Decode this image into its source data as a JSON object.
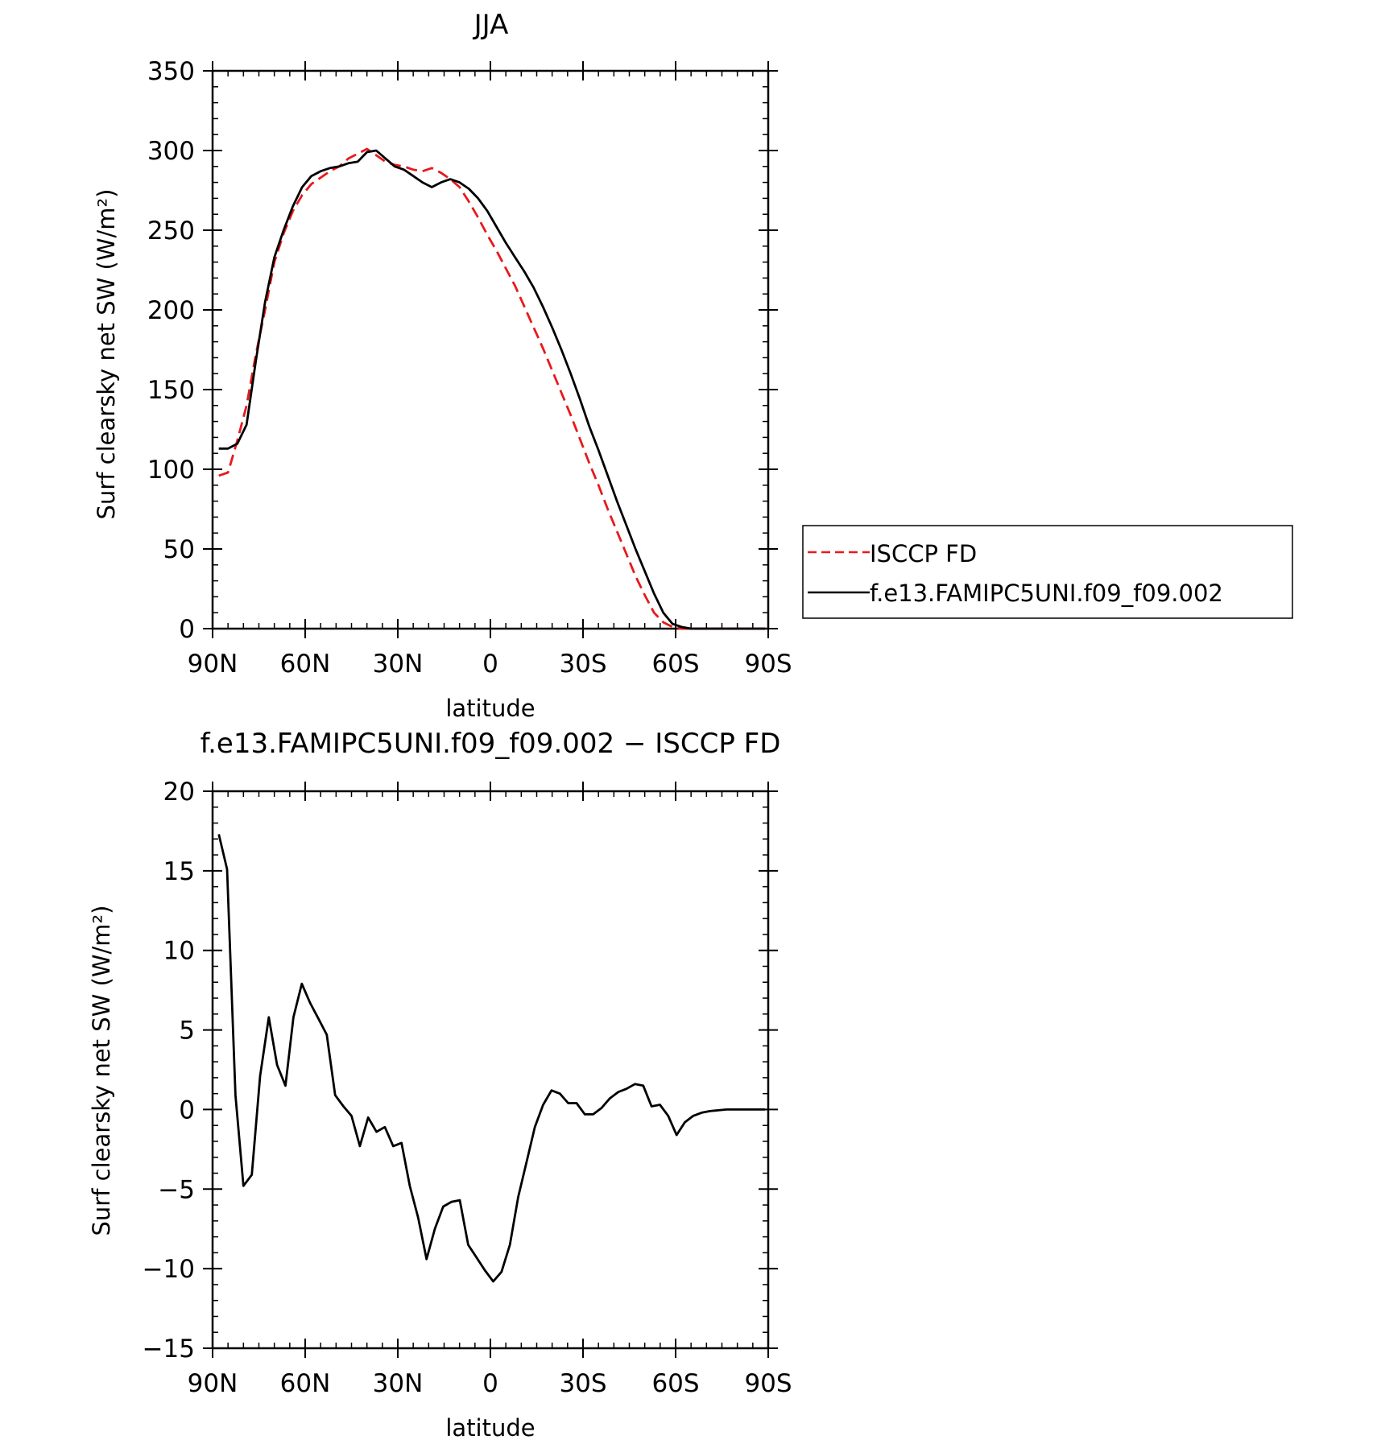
{
  "chart_data": [
    {
      "type": "line",
      "title": "JJA",
      "xlabel": "latitude",
      "ylabel": "Surf clearsky net SW (W/m²)",
      "xlim": [
        90,
        -90
      ],
      "ylim": [
        0,
        350
      ],
      "x_ticks": [
        90,
        60,
        30,
        0,
        -30,
        -60,
        -90
      ],
      "x_tick_labels": [
        "90N",
        "60N",
        "30N",
        "0",
        "30S",
        "60S",
        "90S"
      ],
      "y_ticks": [
        0,
        50,
        100,
        150,
        200,
        250,
        300,
        350
      ],
      "y_tick_labels": [
        "0",
        "50",
        "100",
        "150",
        "200",
        "250",
        "300",
        "350"
      ],
      "legend_position": "right",
      "series": [
        {
          "name": "ISCCP FD",
          "color": "#e8191c",
          "style": "dashed",
          "x": [
            88,
            85,
            82,
            79,
            76,
            73,
            70,
            67,
            64,
            61,
            58,
            55,
            52,
            49,
            46,
            43,
            40,
            37,
            34,
            31,
            28,
            25,
            22,
            19,
            16,
            13,
            10,
            7,
            4,
            1,
            -2,
            -5,
            -8,
            -11,
            -14,
            -17,
            -20,
            -23,
            -26,
            -29,
            -32,
            -35,
            -38,
            -41,
            -44,
            -47,
            -50,
            -53,
            -56,
            -59,
            -62,
            -65,
            -68,
            -71,
            -74,
            -77,
            -80,
            -83,
            -86,
            -89
          ],
          "values": [
            96,
            98,
            118,
            140,
            172,
            200,
            230,
            248,
            262,
            272,
            279,
            283,
            287,
            290,
            295,
            298,
            301,
            297,
            293,
            291,
            290,
            288,
            287,
            289,
            286,
            282,
            277,
            268,
            258,
            247,
            237,
            226,
            215,
            202,
            189,
            176,
            162,
            148,
            134,
            119,
            104,
            90,
            75,
            61,
            47,
            33,
            21,
            10,
            4,
            1,
            0,
            0,
            0,
            0,
            0,
            0,
            0,
            0,
            0,
            0
          ]
        },
        {
          "name": "f.e13.FAMIPC5UNI.f09_f09.002",
          "color": "#000000",
          "style": "solid",
          "x": [
            88,
            85,
            82,
            79,
            76,
            73,
            70,
            67,
            64,
            61,
            58,
            55,
            52,
            49,
            46,
            43,
            40,
            37,
            34,
            31,
            28,
            25,
            22,
            19,
            16,
            13,
            10,
            7,
            4,
            1,
            -2,
            -5,
            -8,
            -11,
            -14,
            -17,
            -20,
            -23,
            -26,
            -29,
            -32,
            -35,
            -38,
            -41,
            -44,
            -47,
            -50,
            -53,
            -56,
            -59,
            -62,
            -65,
            -68,
            -71,
            -74,
            -77,
            -80,
            -83,
            -86,
            -89
          ],
          "values": [
            113,
            113,
            116,
            128,
            168,
            205,
            233,
            250,
            265,
            277,
            284,
            287,
            289,
            290,
            292,
            293,
            299,
            300,
            295,
            290,
            288,
            284,
            280,
            277,
            280,
            282,
            280,
            276,
            270,
            262,
            252,
            242,
            233,
            224,
            214,
            202,
            189,
            175,
            160,
            144,
            127,
            112,
            96,
            80,
            65,
            50,
            36,
            22,
            10,
            3,
            1,
            0,
            0,
            0,
            0,
            0,
            0,
            0,
            0,
            0
          ]
        }
      ]
    },
    {
      "type": "line",
      "title": "f.e13.FAMIPC5UNI.f09_f09.002 − ISCCP FD",
      "xlabel": "latitude",
      "ylabel": "Surf clearsky net SW (W/m²)",
      "xlim": [
        90,
        -90
      ],
      "ylim": [
        -15,
        20
      ],
      "x_ticks": [
        90,
        60,
        30,
        0,
        -30,
        -60,
        -90
      ],
      "x_tick_labels": [
        "90N",
        "60N",
        "30N",
        "0",
        "30S",
        "60S",
        "90S"
      ],
      "y_ticks": [
        -15,
        -10,
        -5,
        0,
        5,
        10,
        15,
        20
      ],
      "y_tick_labels": [
        "−15",
        "−10",
        "−5",
        "0",
        "5",
        "10",
        "15",
        "20"
      ],
      "series": [
        {
          "color": "#000000",
          "style": "solid",
          "x": [
            88,
            85.3,
            82.6,
            80,
            77.3,
            74.6,
            71.8,
            69.1,
            66.4,
            63.8,
            61.1,
            58.4,
            55.7,
            53,
            50.3,
            47.6,
            45,
            42.3,
            39.6,
            36.9,
            34.2,
            31.5,
            28.8,
            26.1,
            23.4,
            20.7,
            18,
            15.3,
            12.6,
            9.9,
            7.2,
            4.5,
            1.8,
            -0.9,
            -3.6,
            -6.3,
            -9,
            -11.7,
            -14.4,
            -17.1,
            -19.8,
            -22.5,
            -25.2,
            -27.9,
            -30.6,
            -33.3,
            -36,
            -38.7,
            -41.4,
            -44.1,
            -46.8,
            -49.5,
            -52.2,
            -54.9,
            -57.6,
            -60.3,
            -63,
            -65.7,
            -68.4,
            -71.1,
            -73.8,
            -76.5,
            -79.2,
            -81.9,
            -84.6,
            -87.3,
            -89
          ],
          "values": [
            17.3,
            15.1,
            0.9,
            -4.8,
            -4.1,
            2.1,
            5.8,
            2.8,
            1.5,
            5.8,
            7.9,
            6.7,
            5.7,
            4.7,
            0.9,
            0.2,
            -0.4,
            -2.3,
            -0.5,
            -1.4,
            -1.1,
            -2.3,
            -2.1,
            -4.8,
            -6.8,
            -9.4,
            -7.5,
            -6.1,
            -5.8,
            -5.7,
            -8.5,
            -9.3,
            -10.1,
            -10.8,
            -10.2,
            -8.5,
            -5.5,
            -3.3,
            -1.1,
            0.3,
            1.2,
            1.0,
            0.4,
            0.4,
            -0.3,
            -0.3,
            0.1,
            0.7,
            1.1,
            1.3,
            1.6,
            1.5,
            0.2,
            0.3,
            -0.4,
            -1.6,
            -0.8,
            -0.4,
            -0.2,
            -0.1,
            -0.05,
            0,
            0,
            0,
            0,
            0,
            0
          ]
        }
      ]
    }
  ]
}
